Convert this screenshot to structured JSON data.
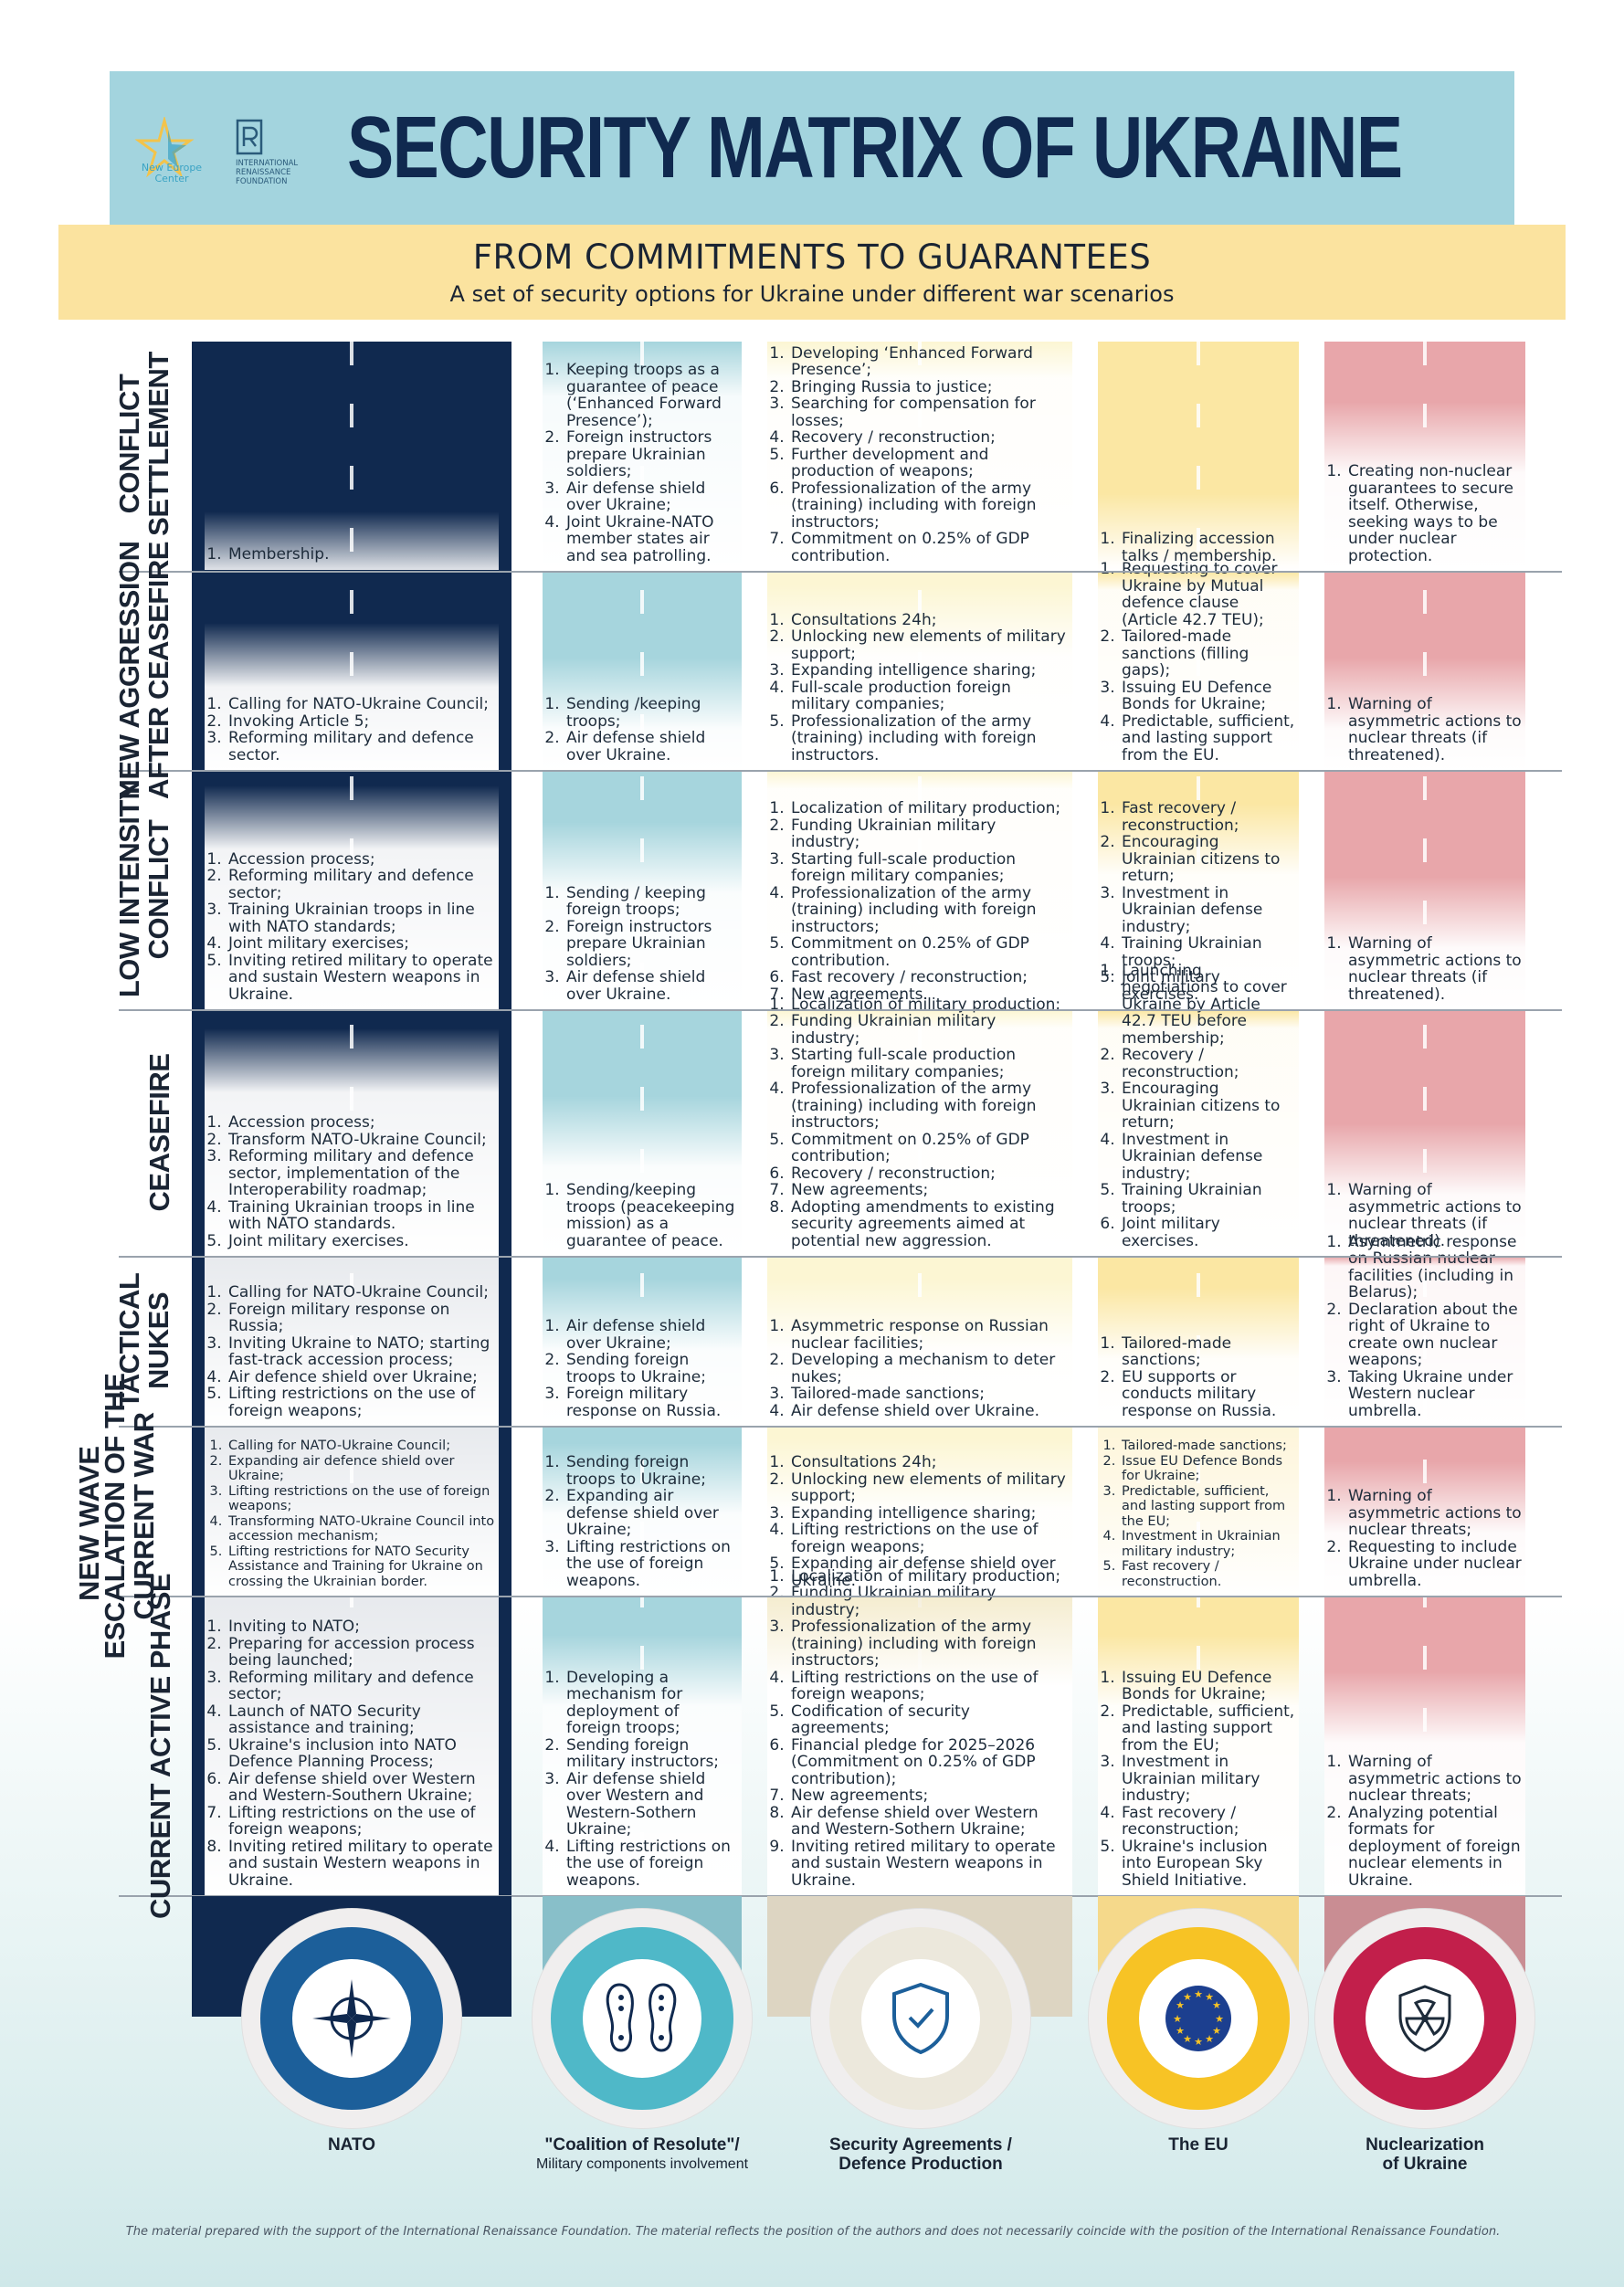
{
  "header": {
    "title": "SECURITY MATRIX OF UKRAINE",
    "logo_nec": "New Europe Center",
    "logo_irf_line1": "International",
    "logo_irf_line2": "Renaissance",
    "logo_irf_line3": "Foundation",
    "subtitle": "FROM COMMITMENTS TO GUARANTEES",
    "tagline": "A set of security options for Ukraine under different war scenarios"
  },
  "group_label": "NEW WAVE",
  "rows": {
    "r1": "CONFLICT SETTLEMENT",
    "r1a": "CONFLICT",
    "r1b": "SETTLEMENT",
    "r2a": "NEW AGGRESSION",
    "r2b": "AFTER CEASEFIRE",
    "r3a": "LOW INTENSITY",
    "r3b": "CONFLICT",
    "r4a": "CEASEFIRE",
    "r5a": "TACTICAL",
    "r5b": "NUKES",
    "r6a": "ESCALATION OF THE",
    "r6b": "CURRENT WAR",
    "r7a": "CURRENT ACTIVE PHASE"
  },
  "cells": {
    "r1": {
      "c1": [
        "Membership."
      ],
      "c2": [
        "Keeping troops as a guarantee of peace (‘Enhanced Forward Presence’);",
        "Foreign instructors prepare Ukrainian soldiers;",
        "Air defense shield over Ukraine;",
        "Joint Ukraine-NATO member states air and sea patrolling."
      ],
      "c3": [
        "Developing ‘Enhanced Forward Presence’;",
        "Bringing Russia to justice;",
        "Searching for compensation for losses;",
        "Recovery / reconstruction;",
        "Further development and production of weapons;",
        "Professionalization of the army (training) including with foreign instructors;",
        "Commitment on 0.25% of GDP contribution."
      ],
      "c4": [
        "Finalizing accession talks / membership."
      ],
      "c5": [
        "Creating non-nuclear guarantees to secure itself. Otherwise, seeking ways to be under nuclear protection."
      ]
    },
    "r2": {
      "c1": [
        "Calling for NATO-Ukraine Council;",
        "Invoking Article 5;",
        "Reforming military and defence sector."
      ],
      "c2": [
        "Sending /keeping troops;",
        "Air defense shield over Ukraine."
      ],
      "c3": [
        "Consultations 24h;",
        "Unlocking new elements of military support;",
        "Expanding intelligence sharing;",
        "Full-scale production foreign military companies;",
        "Professionalization of the army (training) including with foreign instructors."
      ],
      "c4": [
        "Requesting to cover Ukraine by Mutual defence clause (Article 42.7 TEU);",
        "Tailored-made sanctions (filling gaps);",
        "Issuing EU Defence Bonds for Ukraine;",
        "Predictable, sufficient, and lasting support from the EU."
      ],
      "c5": [
        "Warning of asymmetric actions to nuclear threats (if threatened)."
      ]
    },
    "r3": {
      "c1": [
        "Accession process;",
        "Reforming military and defence sector;",
        "Training Ukrainian troops in line with NATO standards;",
        "Joint military exercises;",
        "Inviting retired military to operate and sustain Western weapons in Ukraine."
      ],
      "c2": [
        "Sending / keeping foreign troops;",
        "Foreign instructors prepare Ukrainian soldiers;",
        "Air defense shield over Ukraine."
      ],
      "c3": [
        "Localization of military production;",
        "Funding Ukrainian military industry;",
        "Starting full-scale production foreign military companies;",
        "Professionalization of the army (training) including with foreign instructors;",
        "Commitment on 0.25% of GDP contribution.",
        "Fast recovery / reconstruction;",
        "New agreements."
      ],
      "c4": [
        "Fast recovery / reconstruction;",
        "Encouraging Ukrainian citizens to return;",
        "Investment in Ukrainian defense industry;",
        "Training Ukrainian troops;",
        "Joint military exercises."
      ],
      "c5": [
        "Warning of asymmetric actions to nuclear threats (if threatened)."
      ]
    },
    "r4": {
      "c1": [
        "Accession process;",
        "Transform NATO-Ukraine Council;",
        "Reforming military and defence sector, implementation of the Interoperability roadmap;",
        "Training Ukrainian troops in line with NATO standards.",
        "Joint military exercises."
      ],
      "c2": [
        "Sending/keeping troops (peacekeeping mission) as a guarantee of peace."
      ],
      "c3": [
        "Localization of military production;",
        "Funding Ukrainian military industry;",
        "Starting full-scale production foreign military companies;",
        "Professionalization of the army (training) including with foreign instructors;",
        "Commitment on 0.25% of GDP contribution;",
        "Recovery / reconstruction;",
        "New agreements;",
        "Adopting amendments to existing security agreements aimed at potential new aggression."
      ],
      "c4": [
        "Launching negotiations to cover Ukraine by Article 42.7 TEU before membership;",
        "Recovery / reconstruction;",
        "Encouraging Ukrainian citizens to return;",
        "Investment in Ukrainian defense industry;",
        "Training Ukrainian troops;",
        "Joint military exercises."
      ],
      "c5": [
        "Warning of asymmetric actions to nuclear threats (if threatened)."
      ]
    },
    "r5": {
      "c1": [
        "Calling for NATO-Ukraine Council;",
        "Foreign military response on Russia;",
        "Inviting Ukraine to NATO; starting fast-track accession process;",
        "Air defence shield over Ukraine;",
        "Lifting restrictions on the use of foreign weapons;"
      ],
      "c2": [
        "Air defense shield over Ukraine;",
        "Sending foreign troops to Ukraine;",
        "Foreign military response on Russia."
      ],
      "c3": [
        "Asymmetric response on Russian nuclear facilities;",
        "Developing a mechanism to deter nukes;",
        "Tailored-made sanctions;",
        "Air defense shield over Ukraine."
      ],
      "c4": [
        "Tailored-made sanctions;",
        "EU supports or conducts military response on Russia."
      ],
      "c5": [
        "Asymmetric response on Russian nuclear facilities (including in Belarus);",
        "Declaration about the right of Ukraine to create own nuclear weapons;",
        "Taking Ukraine under Western nuclear umbrella."
      ]
    },
    "r6": {
      "c1": [
        "Calling for NATO-Ukraine Council;",
        "Expanding air defence shield over Ukraine;",
        "Lifting restrictions on the use of foreign weapons;",
        "Transforming NATO-Ukraine Council into accession mechanism;",
        "Lifting restrictions for NATO Security Assistance and Training for Ukraine on crossing the Ukrainian border."
      ],
      "c2": [
        "Sending foreign troops to Ukraine;",
        "Expanding air defense shield over Ukraine;",
        "Lifting restrictions on the use of foreign weapons."
      ],
      "c3": [
        "Consultations 24h;",
        "Unlocking new elements of military support;",
        "Expanding intelligence sharing;",
        "Lifting restrictions on the use of foreign weapons;",
        "Expanding air defense shield over Ukraine."
      ],
      "c4": [
        "Tailored-made sanctions;",
        "Issue EU Defence Bonds for Ukraine;",
        "Predictable, sufficient, and lasting support from the EU;",
        "Investment in Ukrainian military industry;",
        "Fast recovery / reconstruction."
      ],
      "c5": [
        "Warning of asymmetric actions to nuclear threats;",
        "Requesting to include Ukraine under nuclear umbrella."
      ]
    },
    "r7": {
      "c1": [
        "Inviting to NATO;",
        "Preparing for accession process being launched;",
        "Reforming military and defence sector;",
        "Launch of NATO Security assistance and training;",
        "Ukraine's inclusion into NATO Defence Planning Process;",
        "Air defense shield over Western and Western-Southern Ukraine;",
        "Lifting restrictions on the use of foreign weapons;",
        "Inviting retired military to operate and sustain Western weapons in Ukraine."
      ],
      "c2": [
        "Developing a mechanism for deployment of foreign troops;",
        "Sending foreign military instructors;",
        "Air defense shield over Western and Western-Sothern Ukraine;",
        "Lifting restrictions on the use of foreign weapons."
      ],
      "c3": [
        "Localization of military production;",
        "Funding Ukrainian military industry;",
        "Professionalization of the army (training) including with foreign instructors;",
        "Lifting restrictions on the use of foreign weapons;",
        "Codification of security agreements;",
        "Financial pledge for 2025–2026 (Commitment on 0.25% of GDP contribution);",
        "New agreements;",
        "Air defense shield over Western and Western-Sothern Ukraine;",
        "Inviting retired military to operate and sustain Western weapons in Ukraine."
      ],
      "c4": [
        "Issuing EU Defence Bonds for Ukraine;",
        "Predictable, sufficient, and lasting support from the EU;",
        "Investment in Ukrainian military industry;",
        "Fast recovery / reconstruction;",
        "Ukraine's inclusion into European Sky Shield Initiative."
      ],
      "c5": [
        "Warning of asymmetric actions to nuclear threats;",
        "Analyzing potential formats for deployment of foreign nuclear elements in Ukraine."
      ]
    }
  },
  "columns": {
    "c1": "NATO",
    "c2": "\"Coalition of Resolute\"/",
    "c2_sub": "Military components involvement",
    "c3": "Security Agreements /",
    "c3b": "Defence Production",
    "c4": "The EU",
    "c5": "Nuclearization",
    "c5b": "of Ukraine"
  },
  "icons": {
    "c1": "nato-compass-icon",
    "c2": "boot-prints-icon",
    "c3": "shield-check-icon",
    "c4": "eu-stars-icon",
    "c5": "radiation-shield-icon"
  },
  "colors": {
    "nato": "#10294f",
    "coalition": "#a6d5dd",
    "security": "#fcf6d3",
    "eu": "#fbe7a3",
    "nuclear": "#e8a6aa",
    "title_band": "#a3d4de",
    "subtitle_band": "#fbe39f"
  },
  "footer": "The material prepared with the support of the International Renaissance Foundation. The material reflects the position of the authors and does not necessarily coincide with the position of the International Renaissance Foundation."
}
